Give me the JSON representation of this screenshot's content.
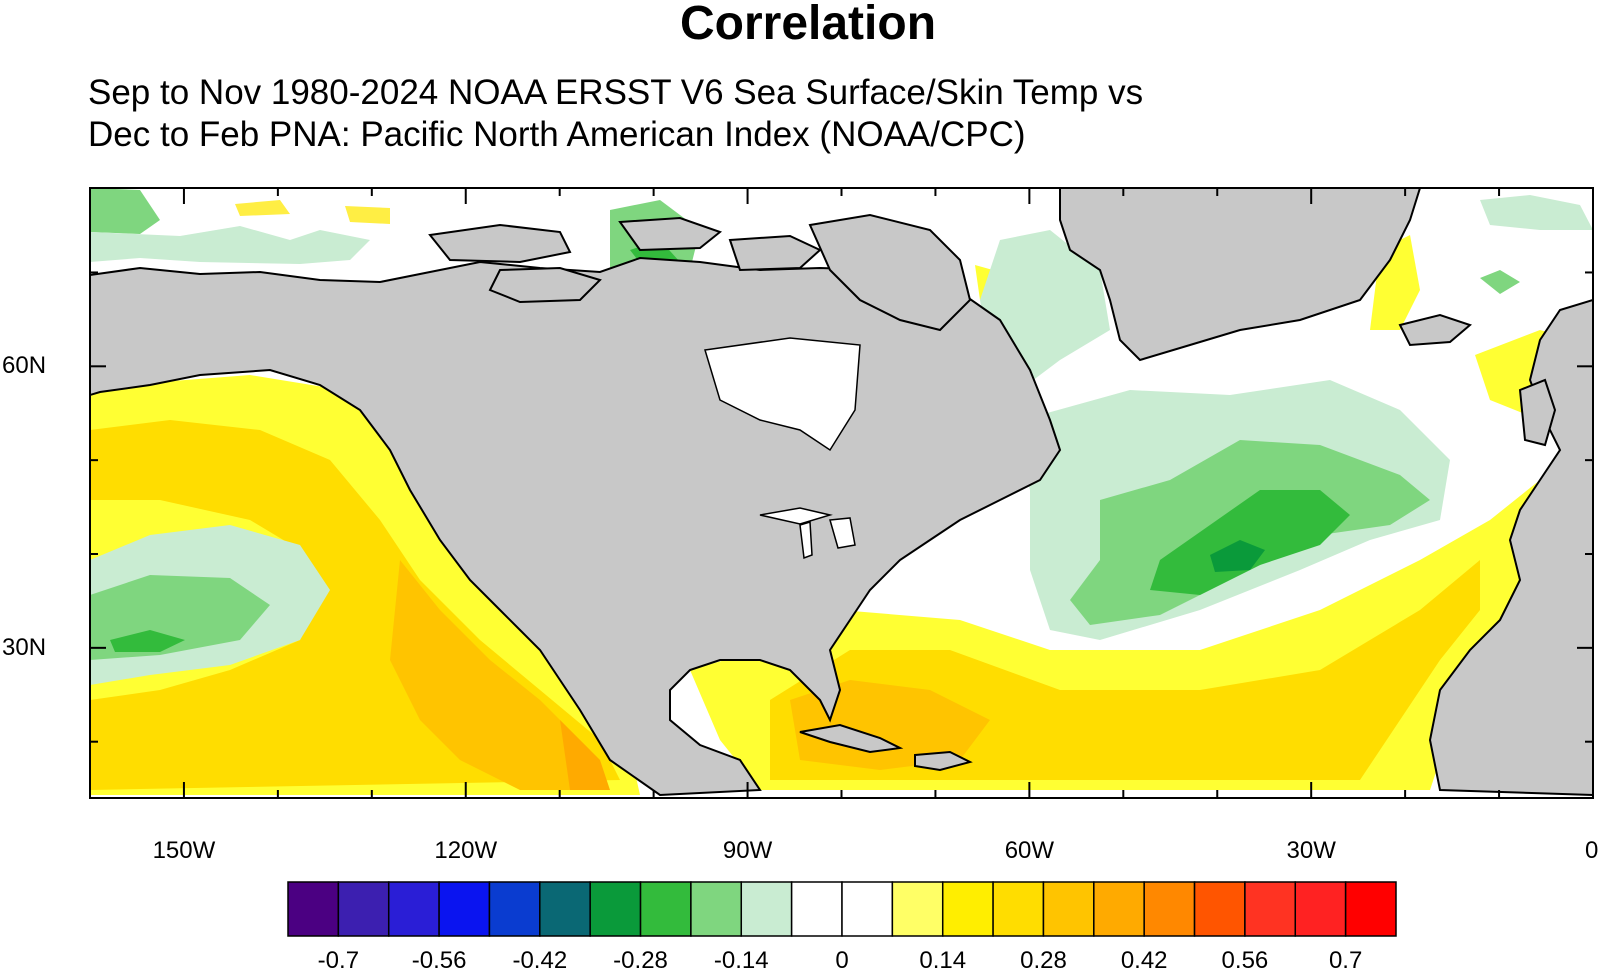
{
  "title": "Correlation",
  "subtitle_line1": "Sep to Nov 1980-2024 NOAA ERSST V6 Sea Surface/Skin Temp vs",
  "subtitle_line2": "Dec to Feb PNA: Pacific North American Index (NOAA/CPC)",
  "map": {
    "projection": "cylindrical-equidistant",
    "lon_range": [
      -160,
      0
    ],
    "lat_range": [
      14,
      79
    ],
    "land_color": "#c8c8c8",
    "coastline_color": "#000000",
    "lon_tick_labels": [
      {
        "lon": -150,
        "label": "150W"
      },
      {
        "lon": -120,
        "label": "120W"
      },
      {
        "lon": -90,
        "label": "90W"
      },
      {
        "lon": -60,
        "label": "60W"
      },
      {
        "lon": -30,
        "label": "30W"
      },
      {
        "lon": 0,
        "label": "0"
      }
    ],
    "lat_tick_labels": [
      {
        "lat": 60,
        "label": "60N"
      },
      {
        "lat": 30,
        "label": "30N"
      }
    ]
  },
  "colorbar": {
    "colors": [
      "#4b0082",
      "#3c1fb0",
      "#2a1ed6",
      "#0a14f0",
      "#0a3cd0",
      "#0a6874",
      "#0a9a3a",
      "#33bb3c",
      "#7fd67f",
      "#c9ecd2",
      "#ffffff",
      "#ffffff",
      "#ffff66",
      "#ffee00",
      "#ffdd00",
      "#ffc400",
      "#ffaa00",
      "#ff8800",
      "#ff5500",
      "#ff3322",
      "#ff2222",
      "#ff0000"
    ],
    "labels": [
      "-0.7",
      "-0.56",
      "-0.42",
      "-0.28",
      "-0.14",
      "0",
      "0.14",
      "0.28",
      "0.42",
      "0.56",
      "0.7"
    ]
  }
}
